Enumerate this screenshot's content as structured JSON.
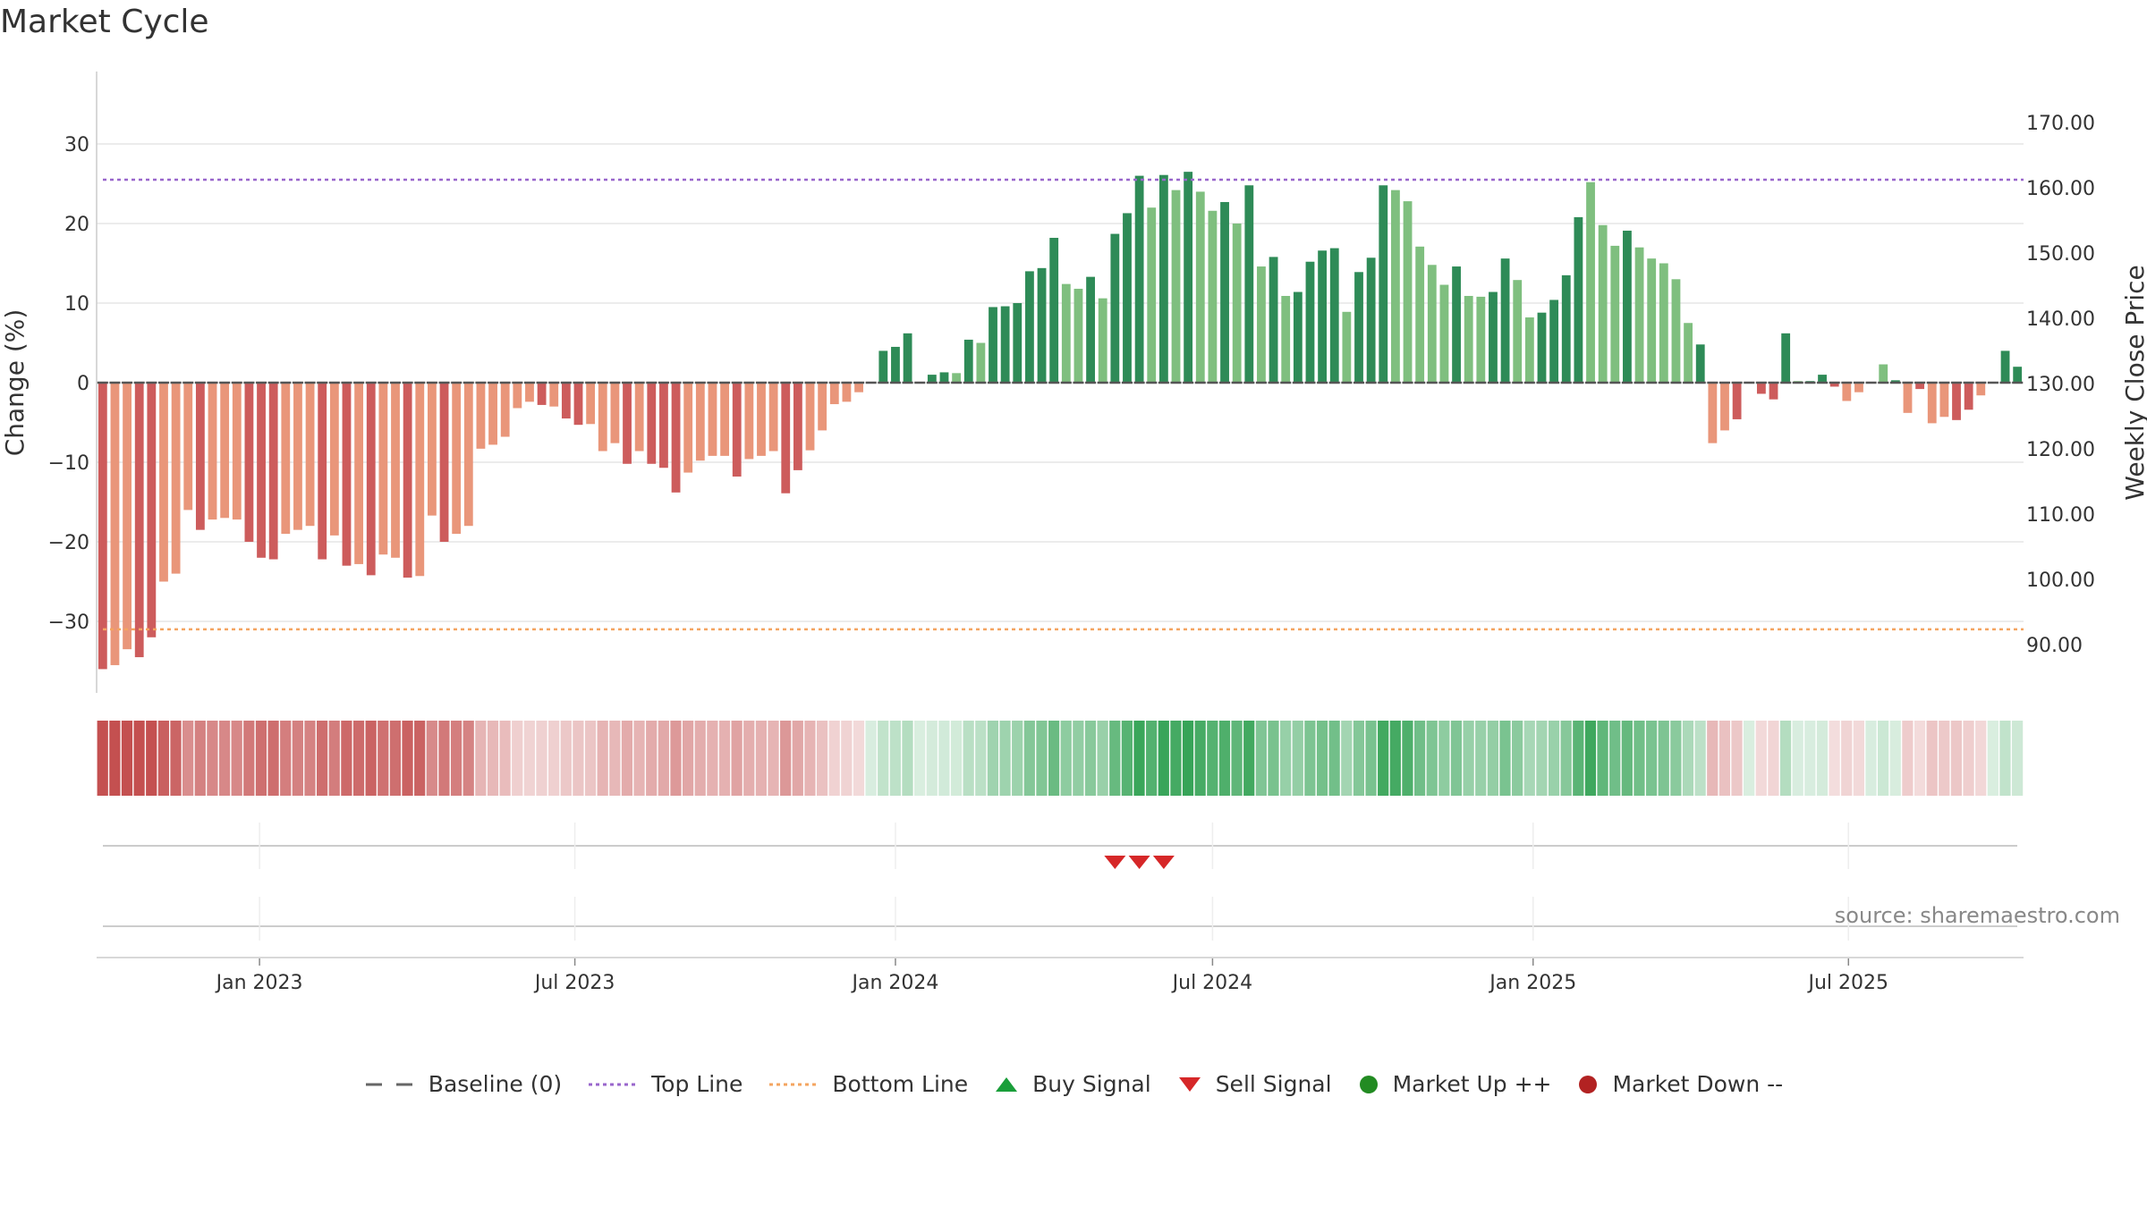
{
  "title": "Market Cycle",
  "source": "source: sharemaestro.com",
  "colors": {
    "up_dark": "#2e8b57",
    "up_light": "#7fbf7f",
    "down_dark": "#cd5c5c",
    "down_light": "#e9967a",
    "top_line": "#9966cc",
    "bottom_line": "#f4a460",
    "baseline": "#555555",
    "buy": "#1a9e3a",
    "sell": "#d62728",
    "market_up": "#228b22",
    "market_down": "#b22222"
  },
  "chart_data": {
    "type": "bar",
    "x_start": "2022-10-03",
    "x_interval": "weekly",
    "ylabel": "Change (%)",
    "ylabel_right": "Weekly Close Price",
    "y_ticks": [
      -30,
      -20,
      -10,
      0,
      10,
      20,
      30
    ],
    "y_tick_labels": [
      "−30",
      "−20",
      "−10",
      "0",
      "10",
      "20",
      "30"
    ],
    "ylim": [
      -39,
      39
    ],
    "right_ticks": [
      "170.00",
      "160.00",
      "150.00",
      "140.00",
      "130.00",
      "120.00",
      "110.00",
      "100.00",
      "90.00"
    ],
    "x_tick_labels": [
      "Jan 2023",
      "Jul 2023",
      "Jan 2024",
      "Jul 2024",
      "Jan 2025",
      "Jul 2025"
    ],
    "x_tick_dates": [
      "2023-01-01",
      "2023-07-01",
      "2024-01-01",
      "2024-07-01",
      "2025-01-01",
      "2025-07-01"
    ],
    "top_line": 25.5,
    "bottom_line": -31,
    "values": [
      -36,
      -35.5,
      -33.5,
      -34.5,
      -32,
      -25,
      -24,
      -16,
      -18.5,
      -17.2,
      -17,
      -17.2,
      -20,
      -22,
      -22.2,
      -19,
      -18.5,
      -18,
      -22.2,
      -19.2,
      -23,
      -22.8,
      -24.2,
      -21.6,
      -22,
      -24.5,
      -24.3,
      -16.7,
      -20,
      -19,
      -18,
      -8.3,
      -7.8,
      -6.8,
      -3.2,
      -2.4,
      -2.8,
      -3,
      -4.5,
      -5.3,
      -5.2,
      -8.6,
      -7.6,
      -10.2,
      -8.6,
      -10.2,
      -10.7,
      -13.8,
      -11.3,
      -9.8,
      -9.2,
      -9.2,
      -11.8,
      -9.6,
      -9.2,
      -8.6,
      -13.9,
      -11,
      -8.5,
      -6,
      -2.7,
      -2.4,
      -1.2,
      0.1,
      4,
      4.5,
      6.2,
      0,
      1,
      1.3,
      1.2,
      5.4,
      5,
      9.5,
      9.6,
      10,
      14,
      14.4,
      18.2,
      12.4,
      11.8,
      13.3,
      10.6,
      18.7,
      21.3,
      26,
      22,
      26.1,
      24.2,
      26.5,
      24,
      21.6,
      22.7,
      20,
      24.8,
      14.6,
      15.8,
      10.9,
      11.4,
      15.2,
      16.6,
      16.9,
      8.9,
      13.9,
      15.7,
      24.8,
      24.2,
      22.8,
      17.1,
      14.8,
      12.3,
      14.6,
      10.9,
      10.8,
      11.4,
      15.6,
      12.9,
      8.2,
      8.8,
      10.4,
      13.5,
      20.8,
      25.2,
      19.8,
      17.2,
      19.1,
      17,
      15.6,
      15,
      13,
      7.5,
      4.8,
      -7.6,
      -6,
      -4.6,
      0,
      -1.4,
      -2.1,
      6.2,
      0.2,
      0.2,
      1,
      -0.5,
      -2.3,
      -1.2,
      0.1,
      2.3,
      0.3,
      -3.8,
      -0.8,
      -5.1,
      -4.3,
      -4.7,
      -3.4,
      -1.6,
      0,
      4,
      2
    ],
    "tone": [
      0,
      1,
      1,
      0,
      0,
      1,
      1,
      1,
      0,
      1,
      1,
      1,
      0,
      0,
      0,
      1,
      1,
      1,
      0,
      1,
      0,
      1,
      0,
      1,
      1,
      0,
      1,
      1,
      0,
      1,
      1,
      1,
      1,
      1,
      1,
      1,
      0,
      1,
      0,
      0,
      1,
      1,
      1,
      0,
      1,
      0,
      0,
      0,
      1,
      1,
      1,
      1,
      0,
      1,
      1,
      1,
      0,
      0,
      1,
      1,
      1,
      1,
      1,
      1,
      0,
      0,
      0,
      0,
      0,
      0,
      1,
      0,
      1,
      0,
      0,
      0,
      0,
      0,
      0,
      1,
      1,
      0,
      1,
      0,
      0,
      0,
      1,
      0,
      1,
      0,
      1,
      1,
      0,
      1,
      0,
      1,
      0,
      1,
      0,
      0,
      0,
      0,
      1,
      0,
      0,
      0,
      1,
      1,
      1,
      1,
      1,
      0,
      1,
      1,
      0,
      0,
      1,
      1,
      0,
      0,
      0,
      0,
      1,
      1,
      1,
      0,
      1,
      1,
      1,
      1,
      1,
      0,
      1,
      1,
      0,
      0,
      0,
      0,
      0,
      1,
      0,
      0,
      0,
      1,
      1,
      0,
      1,
      0,
      1,
      0,
      1,
      1,
      0,
      0,
      1,
      1,
      0,
      0
    ],
    "sell_signal_dates": [
      "2024-05-06",
      "2024-05-20",
      "2024-06-03"
    ],
    "buy_signal_dates": []
  },
  "legend": [
    {
      "label": "Baseline (0)",
      "icon": "baseline-dash"
    },
    {
      "label": "Top Line",
      "icon": "top-line-dots"
    },
    {
      "label": "Bottom Line",
      "icon": "bottom-line-dots"
    },
    {
      "label": "Buy Signal",
      "icon": "triangle-up-icon"
    },
    {
      "label": "Sell Signal",
      "icon": "triangle-down-icon"
    },
    {
      "label": "Market Up ++",
      "icon": "circle-icon"
    },
    {
      "label": "Market Down --",
      "icon": "circle-icon"
    }
  ]
}
